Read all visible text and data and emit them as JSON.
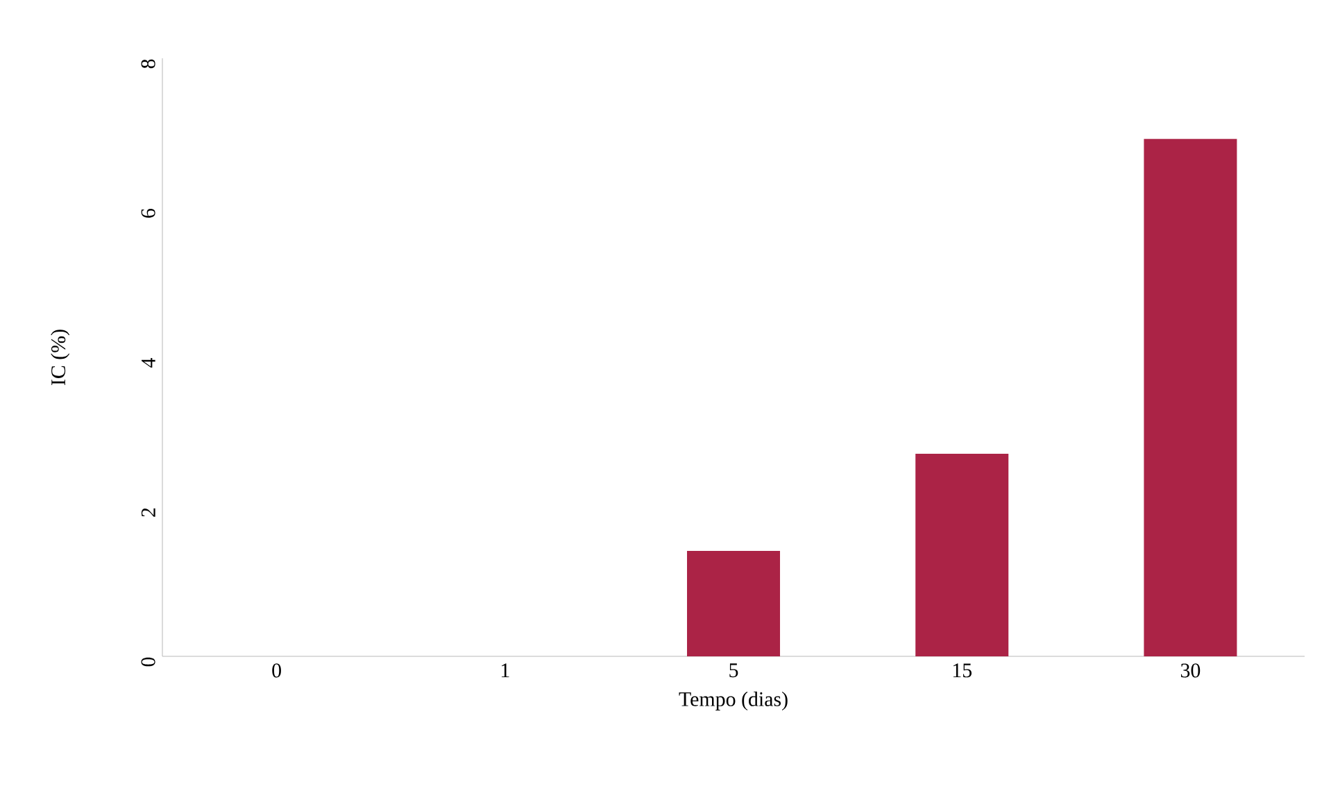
{
  "chart_data": {
    "type": "bar",
    "xlabel": "Tempo (dias)",
    "ylabel": "IC (%)",
    "categories": [
      "0",
      "1",
      "5",
      "15",
      "30"
    ],
    "values": [
      0,
      0,
      1.41,
      2.71,
      6.92
    ],
    "color": "#ab2346",
    "ylim": [
      0,
      8
    ],
    "yticks": [
      0,
      2,
      4,
      6,
      8
    ]
  }
}
